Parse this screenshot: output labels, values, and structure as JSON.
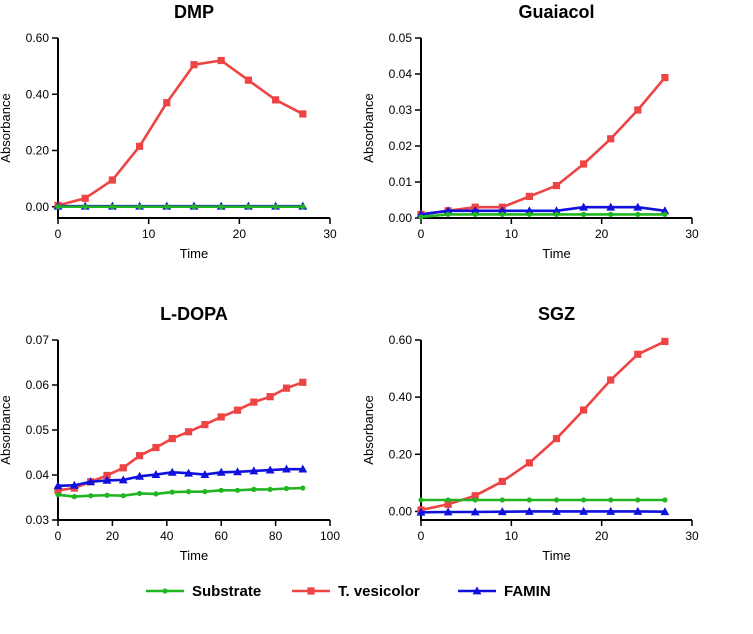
{
  "legend": [
    {
      "name": "Substrate",
      "color": "#22b522",
      "marker": "circle"
    },
    {
      "name": "T. vesicolor",
      "color": "#ee4444",
      "marker": "square"
    },
    {
      "name": "FAMIN",
      "color": "#1111dd",
      "marker": "triangle"
    }
  ],
  "chart_data": [
    {
      "type": "line",
      "title": "DMP",
      "xlabel": "Time",
      "ylabel": "Absorbance",
      "xlim": [
        0,
        30
      ],
      "ylim": [
        -0.04,
        0.6
      ],
      "xticks": [
        0,
        10,
        20,
        30
      ],
      "yticks": [
        0,
        0.2,
        0.4,
        0.6
      ],
      "ytick_labels": [
        "0.00",
        "0.20",
        "0.40",
        "0.60"
      ],
      "x": [
        0,
        3,
        6,
        9,
        12,
        15,
        18,
        21,
        24,
        27
      ],
      "series": [
        {
          "name": "Substrate",
          "values": [
            0,
            0,
            0,
            0,
            0,
            0,
            0,
            0,
            0,
            0
          ]
        },
        {
          "name": "T. vesicolor",
          "values": [
            0.005,
            0.03,
            0.095,
            0.215,
            0.37,
            0.505,
            0.52,
            0.45,
            0.38,
            0.33
          ]
        },
        {
          "name": "FAMIN",
          "values": [
            0.002,
            0.002,
            0.002,
            0.002,
            0.002,
            0.002,
            0.002,
            0.002,
            0.002,
            0.002
          ]
        }
      ]
    },
    {
      "type": "line",
      "title": "Guaiacol",
      "xlabel": "Time",
      "ylabel": "Absorbance",
      "xlim": [
        0,
        30
      ],
      "ylim": [
        0,
        0.05
      ],
      "xticks": [
        0,
        10,
        20,
        30
      ],
      "yticks": [
        0,
        0.01,
        0.02,
        0.03,
        0.04,
        0.05
      ],
      "ytick_labels": [
        "0.00",
        "0.01",
        "0.02",
        "0.03",
        "0.04",
        "0.05"
      ],
      "x": [
        0,
        3,
        6,
        9,
        12,
        15,
        18,
        21,
        24,
        27
      ],
      "series": [
        {
          "name": "Substrate",
          "values": [
            0.0003,
            0.001,
            0.001,
            0.001,
            0.001,
            0.001,
            0.001,
            0.001,
            0.001,
            0.001
          ]
        },
        {
          "name": "T. vesicolor",
          "values": [
            0.001,
            0.002,
            0.003,
            0.003,
            0.006,
            0.009,
            0.015,
            0.022,
            0.03,
            0.039
          ]
        },
        {
          "name": "FAMIN",
          "values": [
            0.001,
            0.002,
            0.002,
            0.002,
            0.002,
            0.002,
            0.003,
            0.003,
            0.003,
            0.002
          ]
        }
      ]
    },
    {
      "type": "line",
      "title": "L-DOPA",
      "xlabel": "Time",
      "ylabel": "Absorbance",
      "xlim": [
        0,
        100
      ],
      "ylim": [
        0.03,
        0.07
      ],
      "xticks": [
        0,
        20,
        40,
        60,
        80,
        100
      ],
      "yticks": [
        0.03,
        0.04,
        0.05,
        0.06,
        0.07
      ],
      "ytick_labels": [
        "0.03",
        "0.04",
        "0.05",
        "0.06",
        "0.07"
      ],
      "x": [
        0,
        6,
        12,
        18,
        24,
        30,
        36,
        42,
        48,
        54,
        60,
        66,
        72,
        78,
        84,
        90
      ],
      "series": [
        {
          "name": "Substrate",
          "values": [
            0.0356,
            0.0352,
            0.0354,
            0.0355,
            0.0354,
            0.0359,
            0.0358,
            0.0362,
            0.0363,
            0.0363,
            0.0366,
            0.0366,
            0.0368,
            0.0368,
            0.037,
            0.0371
          ]
        },
        {
          "name": "T. vesicolor",
          "values": [
            0.0366,
            0.0371,
            0.0385,
            0.0399,
            0.0416,
            0.0443,
            0.0461,
            0.0481,
            0.0496,
            0.0512,
            0.0529,
            0.0544,
            0.0562,
            0.0574,
            0.0593,
            0.0606
          ]
        },
        {
          "name": "FAMIN",
          "values": [
            0.0376,
            0.0377,
            0.0385,
            0.0388,
            0.0389,
            0.0397,
            0.0401,
            0.0406,
            0.0404,
            0.0401,
            0.0406,
            0.0407,
            0.0409,
            0.0411,
            0.0413,
            0.0413
          ]
        }
      ]
    },
    {
      "type": "line",
      "title": "SGZ",
      "xlabel": "Time",
      "ylabel": "Absorbance",
      "xlim": [
        0,
        30
      ],
      "ylim": [
        -0.03,
        0.6
      ],
      "xticks": [
        0,
        10,
        20,
        30
      ],
      "yticks": [
        0,
        0.2,
        0.4,
        0.6
      ],
      "ytick_labels": [
        "0.00",
        "0.20",
        "0.40",
        "0.60"
      ],
      "x": [
        0,
        3,
        6,
        9,
        12,
        15,
        18,
        21,
        24,
        27
      ],
      "series": [
        {
          "name": "Substrate",
          "values": [
            0.04,
            0.04,
            0.04,
            0.04,
            0.04,
            0.04,
            0.04,
            0.04,
            0.04,
            0.04
          ]
        },
        {
          "name": "T. vesicolor",
          "values": [
            0.005,
            0.025,
            0.055,
            0.105,
            0.17,
            0.255,
            0.355,
            0.46,
            0.55,
            0.595
          ]
        },
        {
          "name": "FAMIN",
          "values": [
            -0.003,
            -0.002,
            -0.002,
            -0.001,
            0.0,
            0.0,
            0.0,
            0.0,
            0.0,
            -0.001
          ]
        }
      ]
    }
  ]
}
